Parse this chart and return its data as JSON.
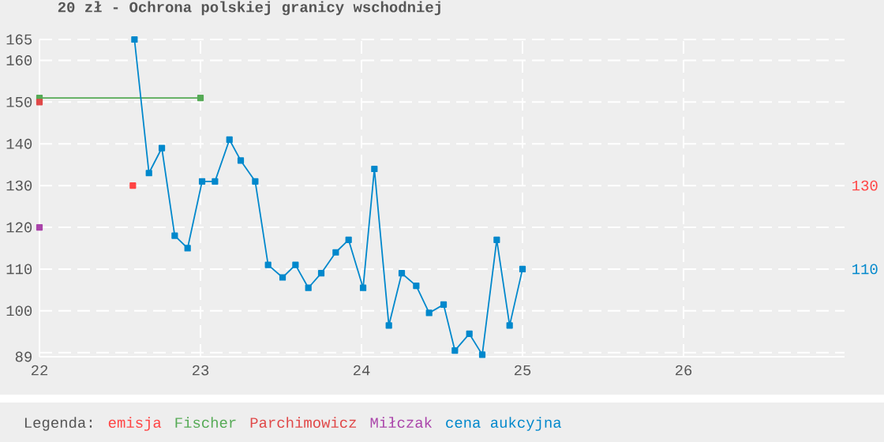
{
  "chart_data": {
    "type": "line",
    "title": "20 zł - Ochrona polskiej granicy wschodniej",
    "legend_title": "Legenda:",
    "xlim": [
      22,
      27
    ],
    "xticks": [
      22,
      23,
      24,
      25,
      26
    ],
    "ylim": [
      89,
      165
    ],
    "yticks": [
      {
        "value": 89,
        "label": "89"
      },
      {
        "value": 90,
        "label": null
      },
      100,
      110,
      120,
      130,
      140,
      150,
      160,
      165
    ],
    "grid": true,
    "legend": "bottom",
    "marker": "square",
    "series": [
      {
        "name": "emisja",
        "color": "#ff4444",
        "x": [
          22.58
        ],
        "values": [
          130
        ]
      },
      {
        "name": "Fischer",
        "color": "#55aa55",
        "x": [
          22,
          23
        ],
        "values": [
          151,
          151
        ]
      },
      {
        "name": "Parchimowicz",
        "color": "#e04848",
        "x": [
          22
        ],
        "values": [
          150
        ]
      },
      {
        "name": "Miłczak",
        "color": "#aa44aa",
        "x": [
          22
        ],
        "values": [
          120
        ]
      },
      {
        "name": "cena aukcyjna",
        "color": "#0088cc",
        "x": [
          22.59,
          22.68,
          22.76,
          22.84,
          22.92,
          23.01,
          23.09,
          23.18,
          23.25,
          23.34,
          23.42,
          23.51,
          23.59,
          23.67,
          23.75,
          23.84,
          23.92,
          24.01,
          24.08,
          24.17,
          24.25,
          24.34,
          24.42,
          24.51,
          24.58,
          24.67,
          24.75,
          24.84,
          24.92,
          25.0
        ],
        "values": [
          165,
          133,
          139,
          118,
          115,
          131,
          131,
          141,
          136,
          131,
          111,
          108,
          111,
          105.5,
          109,
          114,
          117,
          105.5,
          134,
          96.5,
          109,
          106,
          99.5,
          101.5,
          90.5,
          94.5,
          89.5,
          117,
          96.5,
          110
        ]
      }
    ],
    "y2lim": [
      89,
      165
    ],
    "y2ticks": [
      110,
      130
    ]
  }
}
